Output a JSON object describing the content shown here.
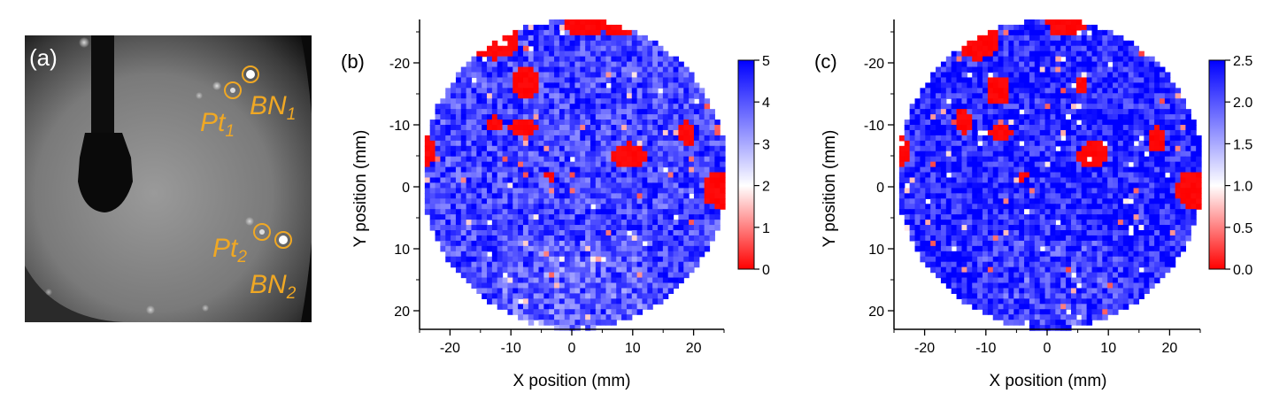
{
  "panel_a": {
    "label": "(a)",
    "annotations": {
      "pt1": {
        "base": "Pt",
        "sub": "1"
      },
      "bn1": {
        "base": "BN",
        "sub": "1"
      },
      "pt2": {
        "base": "Pt",
        "sub": "2"
      },
      "bn2": {
        "base": "BN",
        "sub": "2"
      }
    },
    "marker_color": "#f0a824"
  },
  "chart_data": [
    {
      "type": "heatmap",
      "panel_label": "(b)",
      "xlabel": "X position (mm)",
      "ylabel": "Y position (mm)",
      "xlim": [
        -25,
        25
      ],
      "ylim": [
        -27,
        23
      ],
      "y_inverted": true,
      "x_ticks": [
        -20,
        -10,
        0,
        10,
        20
      ],
      "x_tick_labels": [
        "-20",
        "-10",
        "0",
        "10",
        "20"
      ],
      "y_ticks": [
        -20,
        -10,
        0,
        10,
        20
      ],
      "y_tick_labels": [
        "-20",
        "-10",
        "0",
        "10",
        "20"
      ],
      "colorbar": {
        "min": 0,
        "max": 5,
        "ticks": [
          "0",
          "1",
          "2",
          "3",
          "4",
          "5"
        ],
        "colors": [
          "#ff0000",
          "#ffffff",
          "#0000ff"
        ]
      },
      "typical_value": 4.2,
      "background_value": "high (blue)",
      "low_value_regions": [
        {
          "x": -13,
          "y": -24,
          "rx": 4,
          "ry": 3
        },
        {
          "x": 1.5,
          "y": -27,
          "rx": 3.5,
          "ry": 2.5
        },
        {
          "x": 7,
          "y": -27,
          "rx": 3,
          "ry": 2.5
        },
        {
          "x": -8,
          "y": -17,
          "rx": 2.5,
          "ry": 2.5
        },
        {
          "x": -8.5,
          "y": -10,
          "rx": 2.5,
          "ry": 1.2
        },
        {
          "x": -13,
          "y": -10.5,
          "rx": 1.5,
          "ry": 1.3
        },
        {
          "x": 9,
          "y": -5.5,
          "rx": 2.8,
          "ry": 2
        },
        {
          "x": 18.5,
          "y": -9,
          "rx": 1.2,
          "ry": 2
        },
        {
          "x": -24.5,
          "y": -6,
          "rx": 1.5,
          "ry": 2.5
        },
        {
          "x": 24,
          "y": 0,
          "rx": 3,
          "ry": 3
        },
        {
          "x": -4,
          "y": -2,
          "rx": 1,
          "ry": 0.6
        }
      ]
    },
    {
      "type": "heatmap",
      "panel_label": "(c)",
      "xlabel": "X position (mm)",
      "ylabel": "Y position (mm)",
      "xlim": [
        -25,
        25
      ],
      "ylim": [
        -27,
        23
      ],
      "y_inverted": true,
      "x_ticks": [
        -20,
        -10,
        0,
        10,
        20
      ],
      "x_tick_labels": [
        "-20",
        "-10",
        "0",
        "10",
        "20"
      ],
      "y_ticks": [
        -20,
        -10,
        0,
        10,
        20
      ],
      "y_tick_labels": [
        "-20",
        "-10",
        "0",
        "10",
        "20"
      ],
      "colorbar": {
        "min": 0,
        "max": 2.5,
        "ticks": [
          "0.0",
          "0.5",
          "1.0",
          "1.5",
          "2.0",
          "2.5"
        ],
        "colors": [
          "#ff0000",
          "#ffffff",
          "#0000ff"
        ]
      },
      "typical_value": 2.3,
      "background_value": "high (blue)",
      "low_value_regions": [
        {
          "x": -12,
          "y": -24,
          "rx": 3.5,
          "ry": 3
        },
        {
          "x": 3,
          "y": -27,
          "rx": 3.5,
          "ry": 2.5
        },
        {
          "x": -8.5,
          "y": -16,
          "rx": 2,
          "ry": 2.5
        },
        {
          "x": -14,
          "y": -11,
          "rx": 1.3,
          "ry": 2
        },
        {
          "x": -8,
          "y": -9,
          "rx": 2,
          "ry": 1.2
        },
        {
          "x": 7,
          "y": -5.5,
          "rx": 2.5,
          "ry": 2.2
        },
        {
          "x": 17.5,
          "y": -8,
          "rx": 1.2,
          "ry": 2
        },
        {
          "x": -24.5,
          "y": -6,
          "rx": 1.5,
          "ry": 2.5
        },
        {
          "x": 23.5,
          "y": 0,
          "rx": 3,
          "ry": 3
        },
        {
          "x": -4.5,
          "y": -2,
          "rx": 1,
          "ry": 0.6
        },
        {
          "x": 5,
          "y": -17,
          "rx": 1,
          "ry": 1.5
        }
      ]
    }
  ]
}
